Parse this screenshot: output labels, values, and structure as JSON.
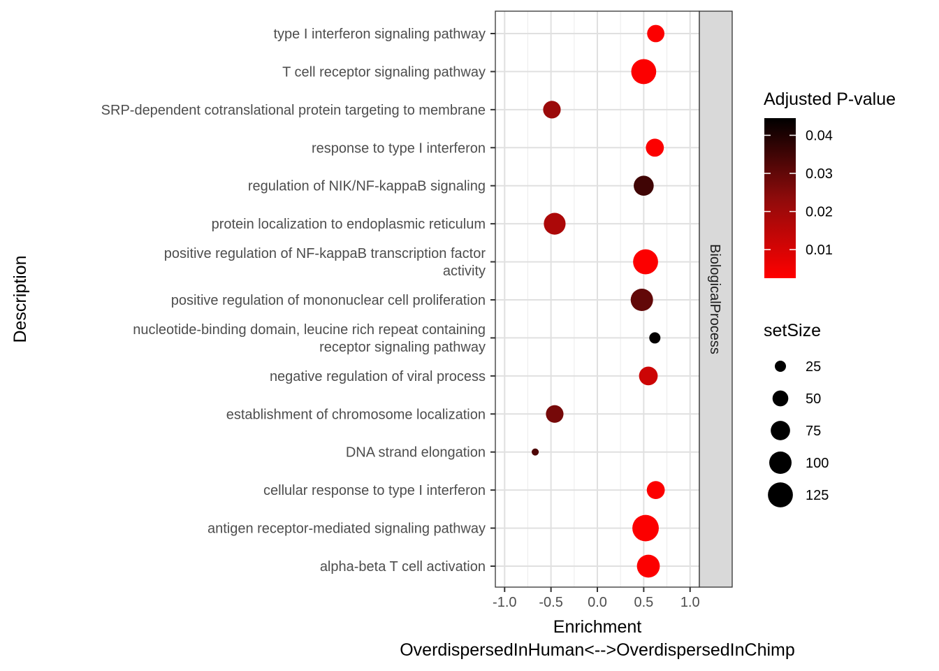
{
  "chart_data": {
    "type": "scatter",
    "facet_label": "BiologicalProcess",
    "xlabel_line1": "Enrichment",
    "xlabel_line2": "OverdispersedInHuman<-->OverdispersedInChimp",
    "ylabel": "Description",
    "xlim": [
      -1.1,
      1.1
    ],
    "xticks": [
      -1.0,
      -0.5,
      0.0,
      0.5,
      1.0
    ],
    "xtick_labels": [
      "-1.0",
      "-0.5",
      "0.0",
      "0.5",
      "1.0"
    ],
    "grid": true,
    "points": [
      {
        "label": [
          "type I interferon signaling pathway"
        ],
        "x": 0.63,
        "p_adjust": 0.003,
        "setSize": 60
      },
      {
        "label": [
          "T cell receptor signaling pathway"
        ],
        "x": 0.5,
        "p_adjust": 0.003,
        "setSize": 125
      },
      {
        "label": [
          "SRP-dependent cotranslational protein targeting to membrane"
        ],
        "x": -0.49,
        "p_adjust": 0.021,
        "setSize": 62
      },
      {
        "label": [
          "response to type I interferon"
        ],
        "x": 0.62,
        "p_adjust": 0.003,
        "setSize": 65
      },
      {
        "label": [
          "regulation of NIK/NF-kappaB signaling"
        ],
        "x": 0.5,
        "p_adjust": 0.035,
        "setSize": 80
      },
      {
        "label": [
          "protein localization to endoplasmic reticulum"
        ],
        "x": -0.46,
        "p_adjust": 0.018,
        "setSize": 95
      },
      {
        "label": [
          "positive regulation of NF-kappaB transcription factor",
          "activity"
        ],
        "x": 0.52,
        "p_adjust": 0.003,
        "setSize": 125
      },
      {
        "label": [
          "positive regulation of mononuclear cell proliferation"
        ],
        "x": 0.48,
        "p_adjust": 0.03,
        "setSize": 100
      },
      {
        "label": [
          "nucleotide-binding domain, leucine rich repeat containing",
          "receptor signaling pathway"
        ],
        "x": 0.62,
        "p_adjust": 0.044,
        "setSize": 25
      },
      {
        "label": [
          "negative regulation of viral process"
        ],
        "x": 0.55,
        "p_adjust": 0.012,
        "setSize": 70
      },
      {
        "label": [
          "establishment of chromosome localization"
        ],
        "x": -0.46,
        "p_adjust": 0.027,
        "setSize": 62
      },
      {
        "label": [
          "DNA strand elongation"
        ],
        "x": -0.67,
        "p_adjust": 0.033,
        "setSize": 10
      },
      {
        "label": [
          "cellular response to type I interferon"
        ],
        "x": 0.63,
        "p_adjust": 0.003,
        "setSize": 65
      },
      {
        "label": [
          "antigen receptor-mediated signaling pathway"
        ],
        "x": 0.52,
        "p_adjust": 0.003,
        "setSize": 140
      },
      {
        "label": [
          "alpha-beta T cell activation"
        ],
        "x": 0.55,
        "p_adjust": 0.003,
        "setSize": 105
      }
    ],
    "color_legend": {
      "title": "Adjusted P-value",
      "low_color": "#ff0000",
      "high_color": "#000000",
      "range": [
        0.0025,
        0.0445
      ],
      "ticks": [
        0.04,
        0.03,
        0.02,
        0.01
      ],
      "tick_labels": [
        "0.04",
        "0.03",
        "0.02",
        "0.01"
      ]
    },
    "size_legend": {
      "title": "setSize",
      "values": [
        25,
        50,
        75,
        100,
        125
      ],
      "labels": [
        "25",
        "50",
        "75",
        "100",
        "125"
      ]
    },
    "point_color_scale": "red (low p) to black (high p)"
  }
}
